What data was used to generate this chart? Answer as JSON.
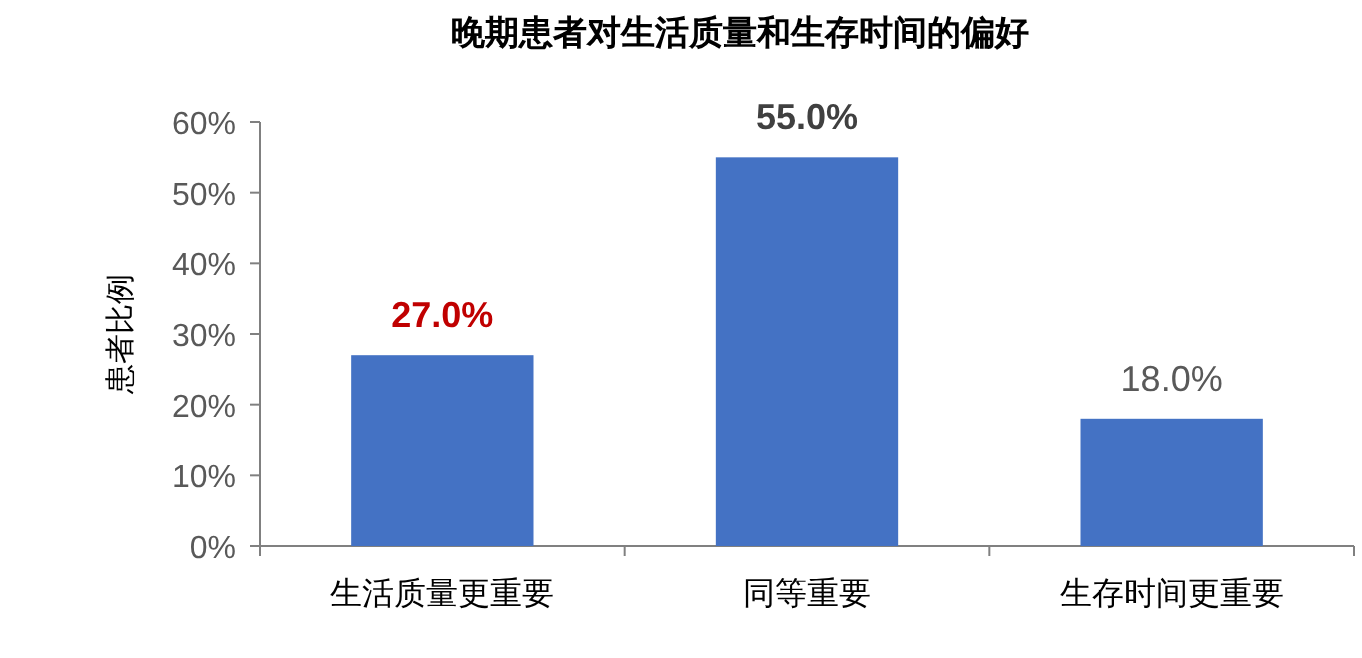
{
  "chart_data": {
    "type": "bar",
    "title": "晚期患者对生活质量和生存时间的偏好",
    "ylabel": "患者比例",
    "categories": [
      "生活质量更重要",
      "同等重要",
      "生存时间更重要"
    ],
    "values": [
      27,
      55,
      18
    ],
    "color": "#4472c4",
    "value_labels": [
      "27.0%",
      "55.0%",
      "18.0%"
    ],
    "ylim": [
      0,
      60
    ],
    "yticks": [
      {
        "value": 0,
        "label": "0%"
      },
      {
        "value": 10,
        "label": "10%"
      },
      {
        "value": 20,
        "label": "20%"
      },
      {
        "value": 30,
        "label": "30%"
      },
      {
        "value": 40,
        "label": "40%"
      },
      {
        "value": 50,
        "label": "50%"
      },
      {
        "value": 60,
        "label": "60%"
      }
    ],
    "grid": false
  }
}
